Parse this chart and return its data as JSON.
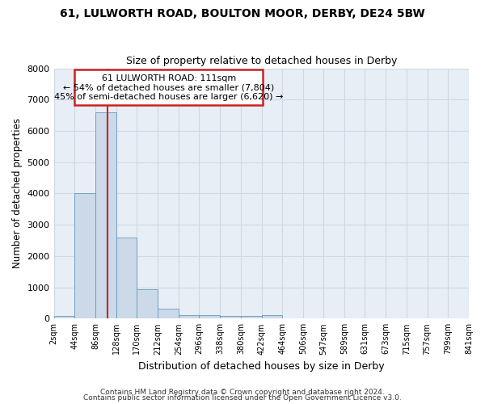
{
  "title": "61, LULWORTH ROAD, BOULTON MOOR, DERBY, DE24 5BW",
  "subtitle": "Size of property relative to detached houses in Derby",
  "xlabel": "Distribution of detached houses by size in Derby",
  "ylabel": "Number of detached properties",
  "bin_edges": [
    2,
    44,
    86,
    128,
    170,
    212,
    254,
    296,
    338,
    380,
    422,
    464,
    506,
    547,
    589,
    631,
    673,
    715,
    757,
    799,
    841
  ],
  "bin_heights": [
    80,
    4000,
    6600,
    2600,
    950,
    310,
    120,
    110,
    90,
    80,
    100,
    0,
    0,
    0,
    0,
    0,
    0,
    0,
    0,
    0
  ],
  "bar_color": "#ccd9e8",
  "bar_edge_color": "#6699bb",
  "property_size": 111,
  "vline_color": "#cc2222",
  "annotation_text": "61 LULWORTH ROAD: 111sqm\n← 54% of detached houses are smaller (7,804)\n45% of semi-detached houses are larger (6,620) →",
  "annotation_box_color": "#cc2222",
  "ylim": [
    0,
    8000
  ],
  "yticks": [
    0,
    1000,
    2000,
    3000,
    4000,
    5000,
    6000,
    7000,
    8000
  ],
  "xtick_labels": [
    "2sqm",
    "44sqm",
    "86sqm",
    "128sqm",
    "170sqm",
    "212sqm",
    "254sqm",
    "296sqm",
    "338sqm",
    "380sqm",
    "422sqm",
    "464sqm",
    "506sqm",
    "547sqm",
    "589sqm",
    "631sqm",
    "673sqm",
    "715sqm",
    "757sqm",
    "799sqm",
    "841sqm"
  ],
  "background_color": "#e8eef6",
  "grid_color": "#d0d8e4",
  "footer_line1": "Contains HM Land Registry data © Crown copyright and database right 2024.",
  "footer_line2": "Contains public sector information licensed under the Open Government Licence v3.0."
}
